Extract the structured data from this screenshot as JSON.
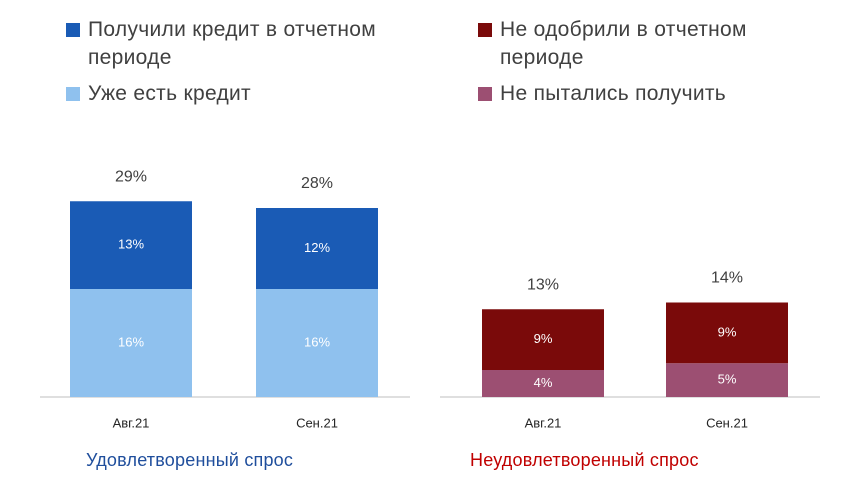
{
  "colors": {
    "received": "#1a5bb5",
    "has_credit": "#8fc1ee",
    "not_approved": "#7a0a0a",
    "not_tried": "#9c4f72",
    "axis": "#bfbfbf",
    "total_text": "#404040",
    "left_caption": "#1f4e9c",
    "right_caption": "#c00000"
  },
  "legend_left": [
    {
      "label": "Получили кредит в отчетном периоде",
      "color": "#1a5bb5"
    },
    {
      "label": "Уже есть кредит",
      "color": "#8fc1ee"
    }
  ],
  "legend_right": [
    {
      "label": "Не одобрили в отчетном периоде",
      "color": "#7a0a0a"
    },
    {
      "label": "Не пытались получить",
      "color": "#9c4f72"
    }
  ],
  "chart_data": [
    {
      "type": "bar",
      "stacked": true,
      "categories": [
        "Авг.21",
        "Сен.21"
      ],
      "series": [
        {
          "name": "Уже есть кредит",
          "values": [
            16,
            16
          ],
          "labels": [
            "16%",
            "16%"
          ],
          "color": "#8fc1ee"
        },
        {
          "name": "Получили кредит в отчетном периоде",
          "values": [
            13,
            12
          ],
          "labels": [
            "13%",
            "12%"
          ],
          "color": "#1a5bb5"
        }
      ],
      "totals": [
        "29%",
        "28%"
      ],
      "total_values": [
        29,
        28
      ],
      "title": "Удовлетворенный спрос",
      "ylim": [
        0,
        30
      ]
    },
    {
      "type": "bar",
      "stacked": true,
      "categories": [
        "Авг.21",
        "Сен.21"
      ],
      "series": [
        {
          "name": "Не пытались получить",
          "values": [
            4,
            5
          ],
          "labels": [
            "4%",
            "5%"
          ],
          "color": "#9c4f72"
        },
        {
          "name": "Не одобрили в отчетном периоде",
          "values": [
            9,
            9
          ],
          "labels": [
            "9%",
            "9%"
          ],
          "color": "#7a0a0a"
        }
      ],
      "totals": [
        "13%",
        "14%"
      ],
      "total_values": [
        13,
        14
      ],
      "title": "Неудовлетворенный спрос",
      "ylim": [
        0,
        30
      ]
    }
  ]
}
